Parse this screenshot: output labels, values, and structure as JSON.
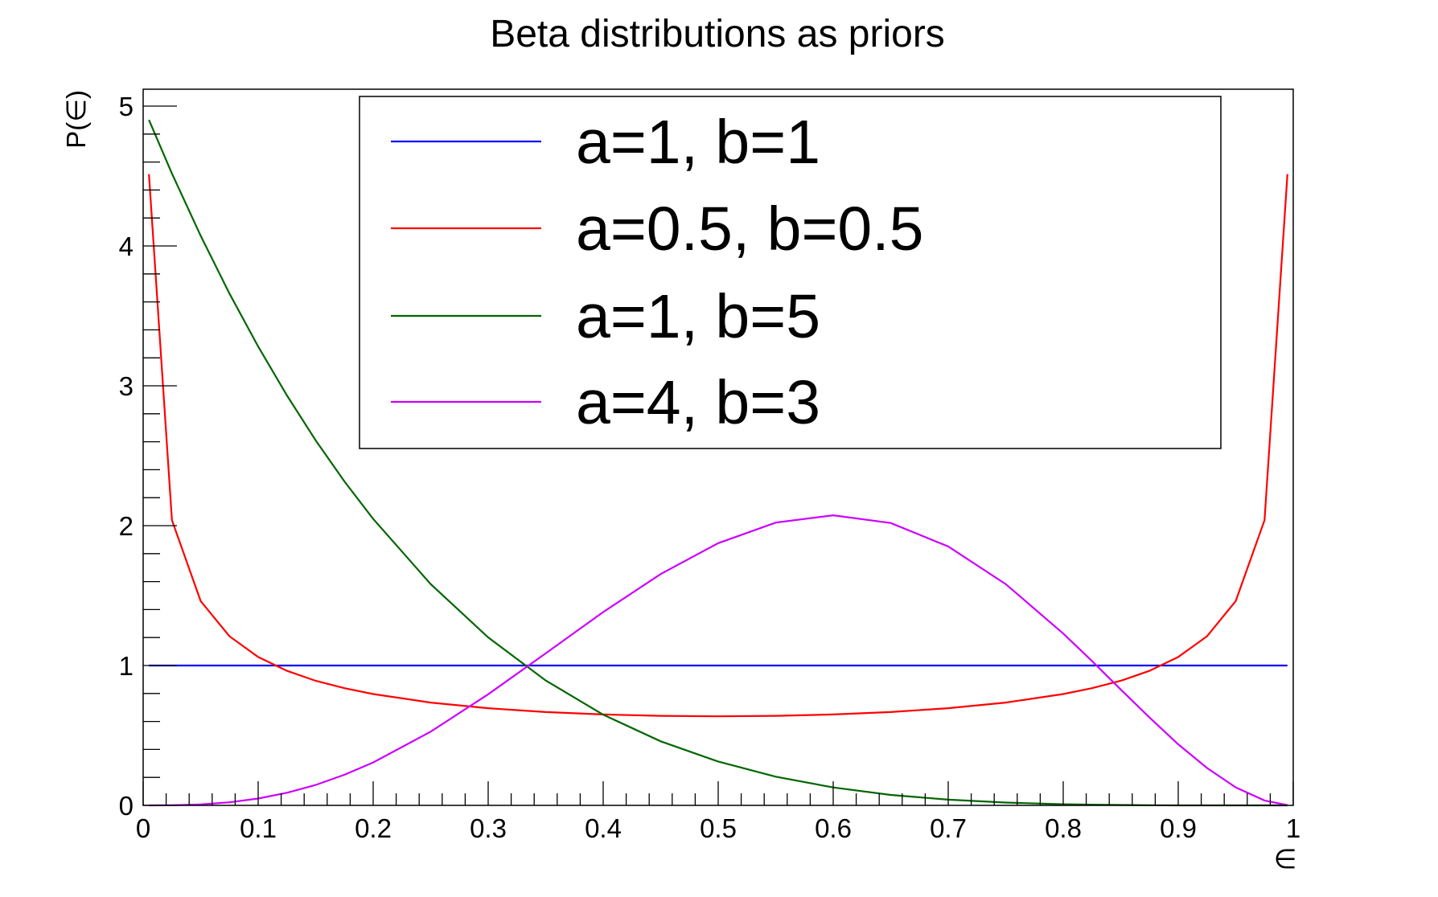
{
  "chart_data": {
    "type": "line",
    "title": "Beta distributions as priors",
    "xlabel": "∈",
    "ylabel": "P(∈)",
    "xlim": [
      0,
      1
    ],
    "ylim": [
      0,
      5.14
    ],
    "grid": false,
    "legend_position": "top-center (inside plot)",
    "x_ticks": [
      "0",
      "0.1",
      "0.2",
      "0.3",
      "0.4",
      "0.5",
      "0.6",
      "0.7",
      "0.8",
      "0.9",
      "1"
    ],
    "y_ticks": [
      "0",
      "1",
      "2",
      "3",
      "4",
      "5"
    ],
    "x": [
      0.005,
      0.025,
      0.05,
      0.075,
      0.1,
      0.125,
      0.15,
      0.175,
      0.2,
      0.25,
      0.3,
      0.35,
      0.4,
      0.45,
      0.5,
      0.55,
      0.6,
      0.65,
      0.7,
      0.75,
      0.8,
      0.825,
      0.85,
      0.875,
      0.9,
      0.925,
      0.95,
      0.975,
      0.995
    ],
    "series": [
      {
        "name": "a=1, b=1",
        "color": "#0000ff",
        "values": [
          1,
          1,
          1,
          1,
          1,
          1,
          1,
          1,
          1,
          1,
          1,
          1,
          1,
          1,
          1,
          1,
          1,
          1,
          1,
          1,
          1,
          1,
          1,
          1,
          1,
          1,
          1,
          1,
          1
        ]
      },
      {
        "name": "a=0.5, b=0.5",
        "color": "#ff0000",
        "values": [
          4.513,
          2.039,
          1.461,
          1.209,
          1.061,
          0.962,
          0.891,
          0.838,
          0.796,
          0.735,
          0.695,
          0.667,
          0.65,
          0.64,
          0.637,
          0.64,
          0.65,
          0.667,
          0.695,
          0.735,
          0.796,
          0.838,
          0.891,
          0.962,
          1.061,
          1.209,
          1.461,
          2.039,
          4.513
        ]
      },
      {
        "name": "a=1, b=5",
        "color": "#006600",
        "values": [
          4.901,
          4.518,
          4.073,
          3.66,
          3.281,
          2.931,
          2.61,
          2.316,
          2.048,
          1.582,
          1.201,
          0.893,
          0.648,
          0.458,
          0.313,
          0.205,
          0.128,
          0.075,
          0.041,
          0.02,
          0.008,
          0.005,
          0.003,
          0.001,
          0,
          0,
          0,
          0,
          0
        ]
      },
      {
        "name": "a=4, b=3",
        "color": "#cc00ff",
        "values": [
          0,
          0.001,
          0.007,
          0.022,
          0.049,
          0.09,
          0.146,
          0.219,
          0.307,
          0.527,
          0.794,
          1.087,
          1.382,
          1.654,
          1.875,
          2.022,
          2.074,
          2.019,
          1.852,
          1.582,
          1.229,
          1.032,
          0.829,
          0.628,
          0.437,
          0.267,
          0.129,
          0.035,
          0.002
        ]
      }
    ]
  },
  "legend": {
    "entries": [
      {
        "label": "a=1, b=1"
      },
      {
        "label": "a=0.5, b=0.5"
      },
      {
        "label": "a=1, b=5"
      },
      {
        "label": "a=4, b=3"
      }
    ]
  }
}
